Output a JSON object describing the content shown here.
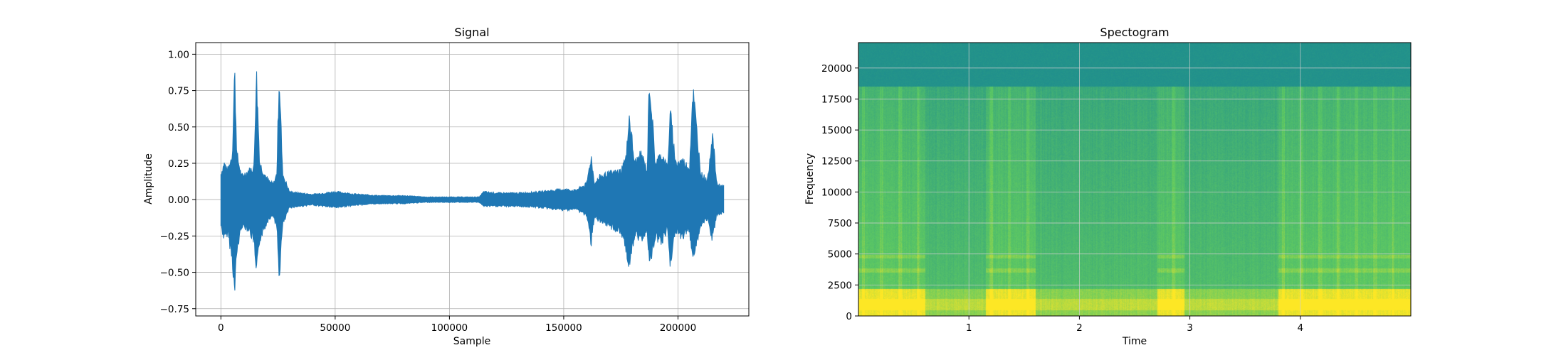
{
  "chart_data": [
    {
      "type": "line",
      "title": "Signal",
      "xlabel": "Sample",
      "ylabel": "Amplitude",
      "xlim": [
        -11000,
        231000
      ],
      "ylim": [
        -0.8,
        1.08
      ],
      "grid": true,
      "color": "#1f77b4",
      "x_ticks": [
        {
          "value": 0,
          "label": "0"
        },
        {
          "value": 50000,
          "label": "50000"
        },
        {
          "value": 100000,
          "label": "100000"
        },
        {
          "value": 150000,
          "label": "150000"
        },
        {
          "value": 200000,
          "label": "200000"
        }
      ],
      "y_ticks": [
        {
          "value": -0.75,
          "label": "−0.75"
        },
        {
          "value": -0.5,
          "label": "−0.50"
        },
        {
          "value": -0.25,
          "label": "−0.25"
        },
        {
          "value": 0,
          "label": "0.00"
        },
        {
          "value": 0.25,
          "label": "0.25"
        },
        {
          "value": 0.5,
          "label": "0.50"
        },
        {
          "value": 0.75,
          "label": "0.75"
        },
        {
          "value": 1.0,
          "label": "1.00"
        }
      ],
      "envelope": {
        "x": [
          0,
          1500,
          3000,
          5000,
          6000,
          7000,
          9000,
          12000,
          14500,
          15500,
          17000,
          19000,
          21000,
          23000,
          24500,
          25500,
          27000,
          30000,
          35000,
          40000,
          50000,
          55000,
          60000,
          70000,
          80000,
          90000,
          100000,
          105000,
          110000,
          113000,
          115000,
          120000,
          130000,
          140000,
          150000,
          155000,
          160000,
          162000,
          163500,
          166000,
          170000,
          175000,
          177500,
          178500,
          181000,
          184000,
          186500,
          187500,
          190000,
          193000,
          195500,
          196500,
          199000,
          202000,
          205000,
          206500,
          210000,
          213000,
          215000,
          217000,
          220000
        ],
        "max": [
          0.2,
          0.28,
          0.22,
          0.35,
          1.0,
          0.35,
          0.18,
          0.22,
          0.25,
          1.0,
          0.28,
          0.2,
          0.14,
          0.12,
          0.2,
          1.0,
          0.2,
          0.06,
          0.05,
          0.04,
          0.06,
          0.05,
          0.04,
          0.03,
          0.03,
          0.02,
          0.02,
          0.02,
          0.02,
          0.02,
          0.06,
          0.05,
          0.05,
          0.06,
          0.08,
          0.07,
          0.12,
          0.33,
          0.12,
          0.18,
          0.2,
          0.22,
          0.34,
          0.67,
          0.28,
          0.35,
          0.22,
          0.95,
          0.28,
          0.35,
          0.24,
          0.68,
          0.28,
          0.3,
          0.24,
          0.85,
          0.2,
          0.15,
          0.52,
          0.12,
          0.1
        ],
        "min": [
          -0.2,
          -0.3,
          -0.25,
          -0.45,
          -0.72,
          -0.4,
          -0.2,
          -0.22,
          -0.32,
          -0.6,
          -0.3,
          -0.22,
          -0.14,
          -0.12,
          -0.22,
          -0.6,
          -0.2,
          -0.06,
          -0.05,
          -0.04,
          -0.06,
          -0.05,
          -0.04,
          -0.03,
          -0.03,
          -0.02,
          -0.02,
          -0.02,
          -0.02,
          -0.02,
          -0.05,
          -0.05,
          -0.05,
          -0.06,
          -0.08,
          -0.07,
          -0.12,
          -0.33,
          -0.12,
          -0.18,
          -0.2,
          -0.25,
          -0.38,
          -0.53,
          -0.28,
          -0.3,
          -0.22,
          -0.5,
          -0.28,
          -0.32,
          -0.22,
          -0.48,
          -0.25,
          -0.28,
          -0.24,
          -0.44,
          -0.2,
          -0.15,
          -0.3,
          -0.12,
          -0.1
        ]
      }
    },
    {
      "type": "heatmap",
      "title": "Spectogram",
      "xlabel": "Time",
      "ylabel": "Frequency",
      "xlim": [
        0,
        5.0
      ],
      "ylim": [
        0,
        22050
      ],
      "grid": true,
      "colormap": "viridis",
      "x_ticks": [
        {
          "value": 1,
          "label": "1"
        },
        {
          "value": 2,
          "label": "2"
        },
        {
          "value": 3,
          "label": "3"
        },
        {
          "value": 4,
          "label": "4"
        }
      ],
      "y_ticks": [
        {
          "value": 0,
          "label": "0"
        },
        {
          "value": 2500,
          "label": "2500"
        },
        {
          "value": 5000,
          "label": "5000"
        },
        {
          "value": 7500,
          "label": "7500"
        },
        {
          "value": 10000,
          "label": "10000"
        },
        {
          "value": 12500,
          "label": "12500"
        },
        {
          "value": 15000,
          "label": "15000"
        },
        {
          "value": 17500,
          "label": "17500"
        },
        {
          "value": 20000,
          "label": "20000"
        }
      ],
      "cutoff_frequency": 18500,
      "active_time_bands": [
        {
          "start": 0.0,
          "end": 0.6
        },
        {
          "start": 1.15,
          "end": 1.6
        },
        {
          "start": 2.7,
          "end": 2.95
        },
        {
          "start": 3.8,
          "end": 5.0
        }
      ]
    }
  ]
}
